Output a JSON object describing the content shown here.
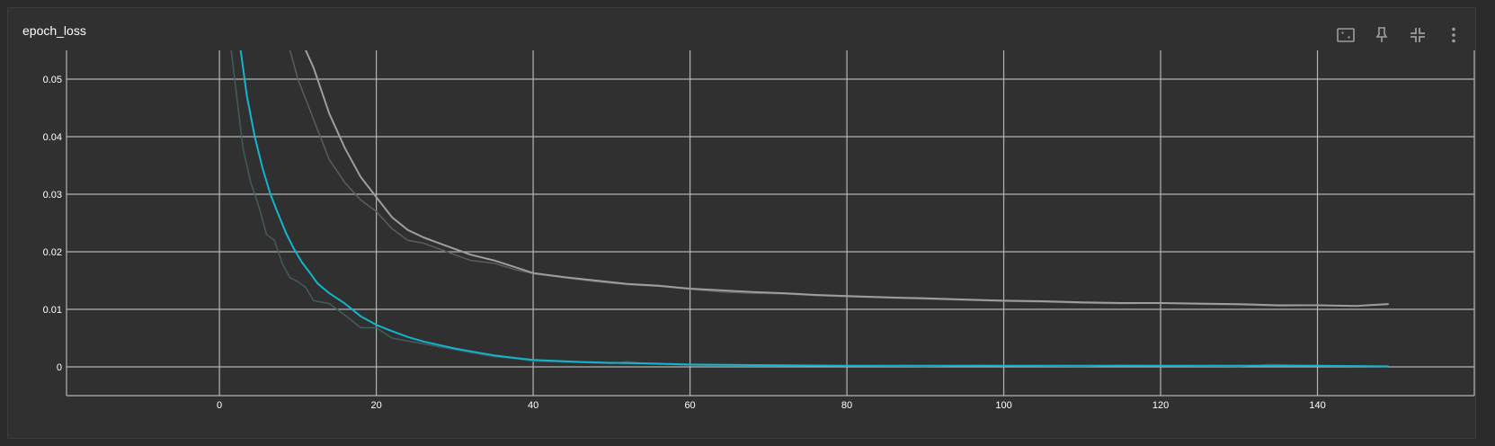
{
  "card": {
    "title": "epoch_loss"
  },
  "toolbar": {
    "icons": [
      "fit-domain-icon",
      "pin-icon",
      "collapse-icon",
      "more-vert-icon"
    ]
  },
  "colors": {
    "background": "#303030",
    "grid": "#b4b4b4",
    "series_train_smoothed": "#12b5cb",
    "series_train_raw": "#425c61",
    "series_validation_smoothed": "#9e9e9e",
    "series_validation_raw": "#5d5d5d"
  },
  "chart_data": {
    "type": "line",
    "title": "",
    "xlabel": "",
    "ylabel": "",
    "xlim": [
      -19.5,
      160
    ],
    "ylim": [
      -0.005,
      0.055
    ],
    "grid": true,
    "x_ticks": [
      0,
      20,
      40,
      60,
      80,
      100,
      120,
      140
    ],
    "y_ticks": [
      0,
      0.01,
      0.02,
      0.03,
      0.04,
      0.05
    ],
    "y_tick_labels": [
      "0",
      "0.01",
      "0.02",
      "0.03",
      "0.04",
      "0.05"
    ],
    "series": [
      {
        "role": "raw",
        "color_key": "series_validation_raw",
        "points": [
          [
            9,
            0.055
          ],
          [
            10,
            0.05
          ],
          [
            12,
            0.043
          ],
          [
            14,
            0.036
          ],
          [
            16,
            0.032
          ],
          [
            18,
            0.029
          ],
          [
            20,
            0.027
          ],
          [
            22,
            0.024
          ],
          [
            24,
            0.022
          ],
          [
            26,
            0.0215
          ],
          [
            28,
            0.0205
          ],
          [
            30,
            0.0195
          ],
          [
            32,
            0.0185
          ],
          [
            35,
            0.018
          ],
          [
            38,
            0.0168
          ],
          [
            40,
            0.0162
          ],
          [
            44,
            0.0155
          ],
          [
            48,
            0.0148
          ],
          [
            52,
            0.0143
          ],
          [
            56,
            0.014
          ],
          [
            60,
            0.0135
          ],
          [
            64,
            0.013
          ],
          [
            68,
            0.0128
          ],
          [
            72,
            0.0127
          ],
          [
            76,
            0.0124
          ],
          [
            80,
            0.0122
          ],
          [
            85,
            0.012
          ],
          [
            90,
            0.0118
          ],
          [
            95,
            0.0116
          ],
          [
            100,
            0.0114
          ],
          [
            105,
            0.0113
          ],
          [
            110,
            0.0111
          ],
          [
            115,
            0.011
          ],
          [
            120,
            0.0111
          ],
          [
            125,
            0.0109
          ],
          [
            130,
            0.0108
          ],
          [
            135,
            0.0106
          ],
          [
            140,
            0.0107
          ],
          [
            145,
            0.0106
          ],
          [
            149,
            0.011
          ]
        ]
      },
      {
        "role": "smoothed",
        "color_key": "series_validation_smoothed",
        "points": [
          [
            11,
            0.055
          ],
          [
            12,
            0.052
          ],
          [
            14,
            0.044
          ],
          [
            16,
            0.038
          ],
          [
            18,
            0.033
          ],
          [
            20,
            0.0295
          ],
          [
            22,
            0.026
          ],
          [
            24,
            0.0238
          ],
          [
            26,
            0.0225
          ],
          [
            28,
            0.0215
          ],
          [
            30,
            0.0205
          ],
          [
            32,
            0.0195
          ],
          [
            35,
            0.0185
          ],
          [
            38,
            0.0172
          ],
          [
            40,
            0.0163
          ],
          [
            44,
            0.0156
          ],
          [
            48,
            0.015
          ],
          [
            52,
            0.0144
          ],
          [
            56,
            0.0141
          ],
          [
            60,
            0.0136
          ],
          [
            64,
            0.0133
          ],
          [
            68,
            0.013
          ],
          [
            72,
            0.0128
          ],
          [
            76,
            0.0125
          ],
          [
            80,
            0.0123
          ],
          [
            85,
            0.0121
          ],
          [
            90,
            0.0119
          ],
          [
            95,
            0.0117
          ],
          [
            100,
            0.0115
          ],
          [
            105,
            0.0114
          ],
          [
            110,
            0.0112
          ],
          [
            115,
            0.0111
          ],
          [
            120,
            0.0111
          ],
          [
            125,
            0.011
          ],
          [
            130,
            0.0109
          ],
          [
            135,
            0.0107
          ],
          [
            140,
            0.0107
          ],
          [
            145,
            0.0106
          ],
          [
            149,
            0.0109
          ]
        ]
      },
      {
        "role": "raw",
        "color_key": "series_train_raw",
        "points": [
          [
            1.5,
            0.055
          ],
          [
            3,
            0.038
          ],
          [
            4,
            0.032
          ],
          [
            5,
            0.028
          ],
          [
            6,
            0.023
          ],
          [
            7,
            0.022
          ],
          [
            8,
            0.018
          ],
          [
            9,
            0.0155
          ],
          [
            10,
            0.0148
          ],
          [
            11,
            0.0138
          ],
          [
            12,
            0.0115
          ],
          [
            14,
            0.011
          ],
          [
            16,
            0.009
          ],
          [
            18,
            0.0068
          ],
          [
            20,
            0.0068
          ],
          [
            22,
            0.005
          ],
          [
            24,
            0.0045
          ],
          [
            26,
            0.004
          ],
          [
            28,
            0.0035
          ],
          [
            30,
            0.003
          ],
          [
            32,
            0.0025
          ],
          [
            35,
            0.0018
          ],
          [
            38,
            0.0014
          ],
          [
            40,
            0.001
          ],
          [
            45,
            0.0008
          ],
          [
            50,
            0.0006
          ],
          [
            52,
            0.0009
          ],
          [
            55,
            0.0005
          ],
          [
            60,
            0.0003
          ],
          [
            70,
            0.0002
          ],
          [
            80,
            0.0002
          ],
          [
            90,
            0.0001
          ],
          [
            97,
            0.0003
          ],
          [
            100,
            0.0002
          ],
          [
            110,
            0.0001
          ],
          [
            115,
            0.0003
          ],
          [
            120,
            0.0002
          ],
          [
            130,
            0.0001
          ],
          [
            134,
            0.0004
          ],
          [
            140,
            0.0002
          ],
          [
            149,
            0.0001
          ]
        ]
      },
      {
        "role": "smoothed",
        "color_key": "series_train_smoothed",
        "points": [
          [
            2.7,
            0.055
          ],
          [
            3.5,
            0.047
          ],
          [
            4.5,
            0.04
          ],
          [
            5.5,
            0.0345
          ],
          [
            6.5,
            0.03
          ],
          [
            7.5,
            0.0265
          ],
          [
            8.5,
            0.0232
          ],
          [
            9.5,
            0.0205
          ],
          [
            10.5,
            0.0182
          ],
          [
            11.5,
            0.0164
          ],
          [
            12.5,
            0.0145
          ],
          [
            14,
            0.0128
          ],
          [
            16,
            0.011
          ],
          [
            18,
            0.0088
          ],
          [
            20,
            0.0073
          ],
          [
            22,
            0.0062
          ],
          [
            24,
            0.0052
          ],
          [
            26,
            0.0044
          ],
          [
            28,
            0.0038
          ],
          [
            30,
            0.0032
          ],
          [
            32,
            0.0027
          ],
          [
            35,
            0.002
          ],
          [
            38,
            0.0015
          ],
          [
            40,
            0.0012
          ],
          [
            45,
            0.0009
          ],
          [
            50,
            0.0007
          ],
          [
            55,
            0.0006
          ],
          [
            60,
            0.0004
          ],
          [
            70,
            0.0003
          ],
          [
            80,
            0.0002
          ],
          [
            90,
            0.0002
          ],
          [
            100,
            0.0002
          ],
          [
            110,
            0.0002
          ],
          [
            120,
            0.0002
          ],
          [
            130,
            0.0002
          ],
          [
            140,
            0.0002
          ],
          [
            149,
            0.0001
          ]
        ]
      }
    ]
  }
}
